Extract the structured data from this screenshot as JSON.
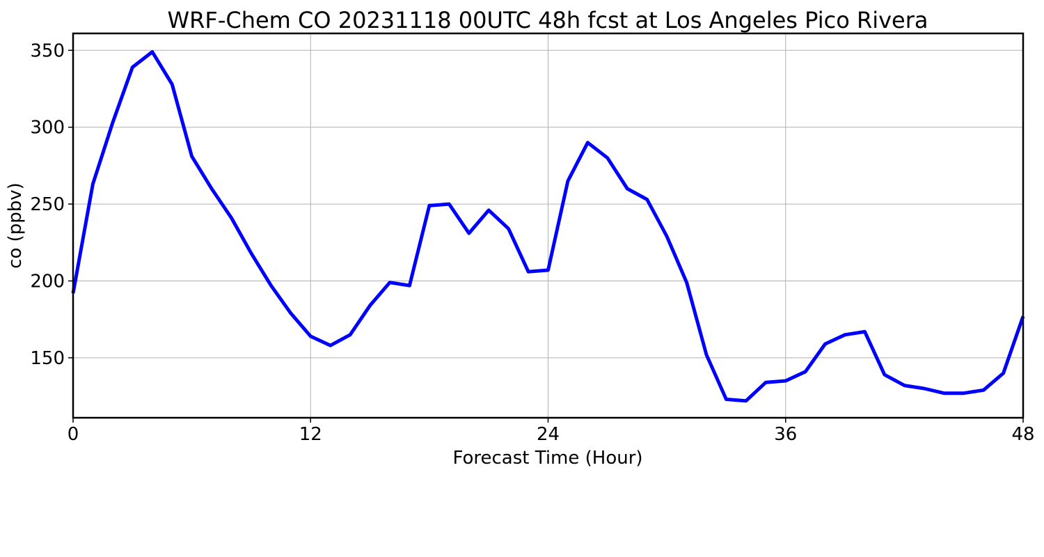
{
  "chart_data": {
    "type": "line",
    "title": "WRF-Chem CO  20231118 00UTC 48h fcst at Los Angeles Pico Rivera",
    "xlabel": "Forecast Time (Hour)",
    "ylabel": "co  (ppbv)",
    "xlim": [
      0,
      48
    ],
    "ylim": [
      111,
      361
    ],
    "xticks": [
      0,
      12,
      24,
      36,
      48
    ],
    "yticks": [
      150,
      200,
      250,
      300,
      350
    ],
    "grid": true,
    "series": [
      {
        "color": "#0000ff",
        "x": [
          0,
          1,
          2,
          3,
          4,
          5,
          6,
          7,
          8,
          9,
          10,
          11,
          12,
          13,
          14,
          15,
          16,
          17,
          18,
          19,
          20,
          21,
          22,
          23,
          24,
          25,
          26,
          27,
          28,
          29,
          30,
          31,
          32,
          33,
          34,
          35,
          36,
          37,
          38,
          39,
          40,
          41,
          42,
          43,
          44,
          45,
          46,
          47,
          48
        ],
        "values": [
          192,
          263,
          303,
          339,
          349,
          328,
          281,
          260,
          241,
          218,
          197,
          179,
          164,
          158,
          165,
          184,
          199,
          197,
          249,
          250,
          231,
          246,
          234,
          206,
          207,
          265,
          290,
          280,
          260,
          253,
          229,
          199,
          152,
          123,
          122,
          134,
          135,
          141,
          159,
          165,
          167,
          139,
          132,
          130,
          127,
          127,
          129,
          140,
          177
        ]
      }
    ]
  }
}
